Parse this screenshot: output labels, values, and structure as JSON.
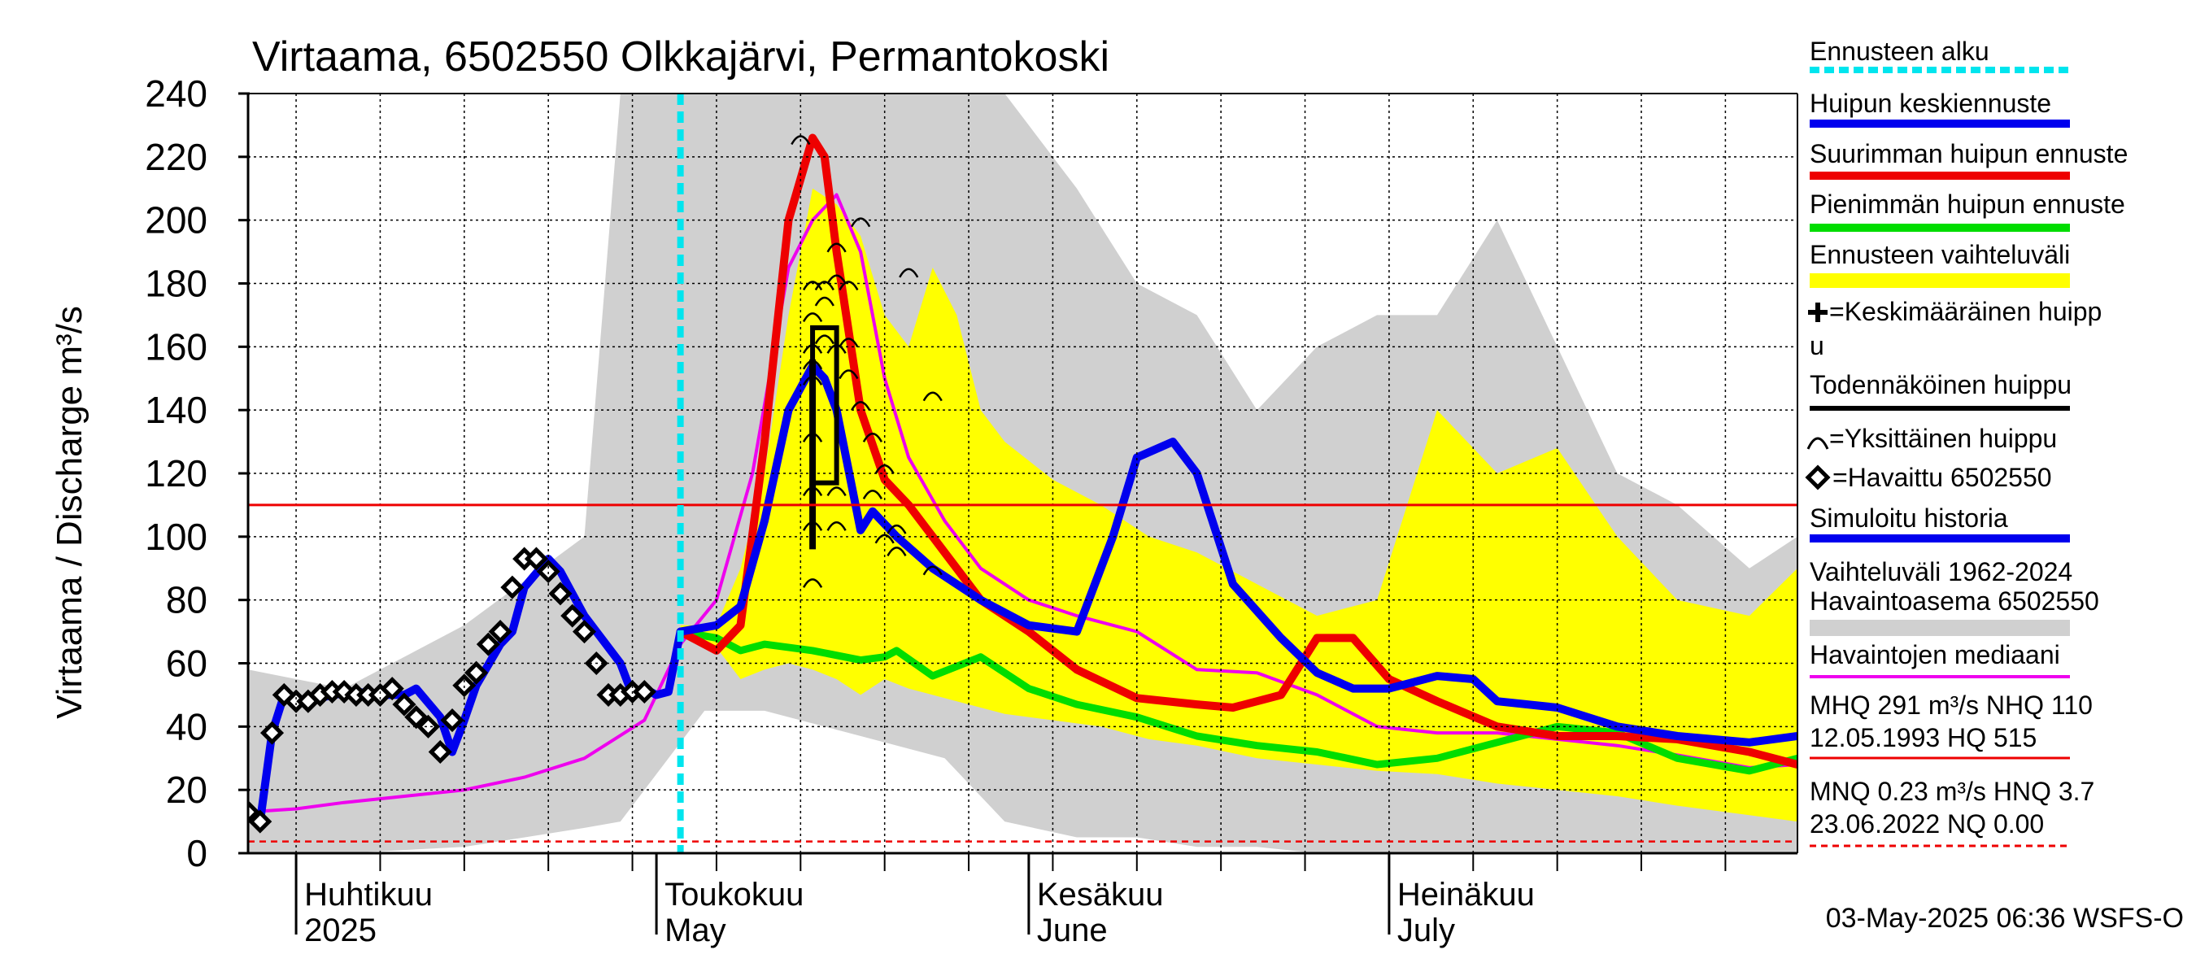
{
  "chart_data": {
    "type": "line",
    "title": "Virtaama, 6502550 Olkkajärvi, Permantokoski",
    "ylabel": "Virtaama / Discharge   m³/s",
    "ylim": [
      0,
      240
    ],
    "xlim": [
      "2025-03-28",
      "2025-08-04"
    ],
    "y_ticks": [
      0,
      20,
      40,
      60,
      80,
      100,
      120,
      140,
      160,
      180,
      200,
      220,
      240
    ],
    "grid": true,
    "legend_position": "right",
    "forecast_start": "2025-05-03",
    "month_labels": [
      {
        "date": "2025-04-01",
        "fi": "Huhtikuu",
        "en": "2025"
      },
      {
        "date": "2025-05-01",
        "fi": "Toukokuu",
        "en": "May"
      },
      {
        "date": "2025-06-01",
        "fi": "Kesäkuu",
        "en": "June"
      },
      {
        "date": "2025-07-01",
        "fi": "Heinäkuu",
        "en": "July"
      }
    ],
    "reference_lines": [
      {
        "name": "NHQ",
        "value": 110,
        "color": "#ee0000",
        "style": "solid"
      },
      {
        "name": "NQ",
        "value": 0.0,
        "color": "#ee0000",
        "style": "dashed"
      },
      {
        "name": "HNQ",
        "value": 3.7,
        "color": "#ee0000",
        "style": "dashed"
      }
    ],
    "series": [
      {
        "name": "Vaihteluväli 1962-2024 Havaintoasema 6502550",
        "kind": "band",
        "color": "#d0d0d0",
        "x": [
          "2025-03-28",
          "2025-04-05",
          "2025-04-15",
          "2025-04-25",
          "2025-04-28",
          "2025-05-05",
          "2025-05-10",
          "2025-05-15",
          "2025-05-20",
          "2025-05-25",
          "2025-05-30",
          "2025-06-05",
          "2025-06-10",
          "2025-06-15",
          "2025-06-20",
          "2025-06-25",
          "2025-06-30",
          "2025-07-05",
          "2025-07-10",
          "2025-07-15",
          "2025-07-20",
          "2025-07-25",
          "2025-07-31",
          "2025-08-04"
        ],
        "low": [
          0,
          0,
          2,
          8,
          10,
          45,
          45,
          40,
          35,
          30,
          10,
          5,
          5,
          2,
          2,
          0,
          0,
          0,
          0,
          0,
          0,
          0,
          0,
          0
        ],
        "high": [
          58,
          52,
          72,
          100,
          240,
          240,
          240,
          240,
          240,
          240,
          240,
          210,
          180,
          170,
          140,
          160,
          170,
          170,
          200,
          160,
          120,
          110,
          90,
          100
        ]
      },
      {
        "name": "Ennusteen vaihteluväli",
        "kind": "band",
        "color": "#ffff00",
        "x": [
          "2025-05-03",
          "2025-05-06",
          "2025-05-08",
          "2025-05-10",
          "2025-05-12",
          "2025-05-14",
          "2025-05-16",
          "2025-05-18",
          "2025-05-20",
          "2025-05-22",
          "2025-05-24",
          "2025-05-26",
          "2025-05-28",
          "2025-05-30",
          "2025-06-03",
          "2025-06-07",
          "2025-06-11",
          "2025-06-15",
          "2025-06-20",
          "2025-06-25",
          "2025-06-30",
          "2025-07-05",
          "2025-07-10",
          "2025-07-15",
          "2025-07-20",
          "2025-07-25",
          "2025-07-31",
          "2025-08-04"
        ],
        "low": [
          68,
          65,
          55,
          58,
          60,
          58,
          55,
          50,
          55,
          52,
          50,
          48,
          46,
          44,
          42,
          40,
          36,
          34,
          30,
          28,
          26,
          25,
          22,
          20,
          18,
          15,
          12,
          10
        ],
        "high": [
          72,
          72,
          90,
          120,
          170,
          210,
          205,
          195,
          170,
          160,
          185,
          170,
          140,
          130,
          118,
          110,
          100,
          95,
          85,
          75,
          80,
          140,
          120,
          128,
          100,
          80,
          75,
          90
        ]
      },
      {
        "name": "Havaintojen mediaani",
        "kind": "line",
        "color": "#ee00ee",
        "x": [
          "2025-03-28",
          "2025-04-01",
          "2025-04-05",
          "2025-04-10",
          "2025-04-15",
          "2025-04-20",
          "2025-04-25",
          "2025-04-30",
          "2025-05-03",
          "2025-05-06",
          "2025-05-09",
          "2025-05-12",
          "2025-05-14",
          "2025-05-16",
          "2025-05-18",
          "2025-05-20",
          "2025-05-22",
          "2025-05-25",
          "2025-05-28",
          "2025-06-01",
          "2025-06-05",
          "2025-06-10",
          "2025-06-15",
          "2025-06-20",
          "2025-06-25",
          "2025-06-30",
          "2025-07-05",
          "2025-07-10",
          "2025-07-15",
          "2025-07-20",
          "2025-07-25",
          "2025-07-31",
          "2025-08-04"
        ],
        "values": [
          13,
          14,
          16,
          18,
          20,
          24,
          30,
          42,
          66,
          80,
          120,
          185,
          200,
          208,
          190,
          150,
          125,
          105,
          90,
          80,
          75,
          70,
          58,
          57,
          50,
          40,
          38,
          38,
          36,
          34,
          31,
          27,
          28
        ]
      },
      {
        "name": "Suurimman huipun ennuste",
        "kind": "line",
        "color": "#ee0000",
        "x": [
          "2025-05-03",
          "2025-05-06",
          "2025-05-08",
          "2025-05-10",
          "2025-05-12",
          "2025-05-14",
          "2025-05-15",
          "2025-05-16",
          "2025-05-18",
          "2025-05-20",
          "2025-05-22",
          "2025-05-25",
          "2025-05-28",
          "2025-06-01",
          "2025-06-05",
          "2025-06-10",
          "2025-06-15",
          "2025-06-18",
          "2025-06-22",
          "2025-06-25",
          "2025-06-28",
          "2025-07-01",
          "2025-07-05",
          "2025-07-10",
          "2025-07-15",
          "2025-07-20",
          "2025-07-25",
          "2025-07-31",
          "2025-08-04"
        ],
        "values": [
          70,
          64,
          72,
          130,
          200,
          226,
          220,
          190,
          140,
          118,
          110,
          95,
          80,
          70,
          58,
          49,
          47,
          46,
          50,
          68,
          68,
          55,
          48,
          40,
          37,
          37,
          36,
          32,
          28
        ]
      },
      {
        "name": "Pienimmän huipun ennuste",
        "kind": "line",
        "color": "#00dd00",
        "x": [
          "2025-05-03",
          "2025-05-06",
          "2025-05-08",
          "2025-05-10",
          "2025-05-14",
          "2025-05-18",
          "2025-05-20",
          "2025-05-21",
          "2025-05-24",
          "2025-05-28",
          "2025-06-01",
          "2025-06-05",
          "2025-06-10",
          "2025-06-15",
          "2025-06-20",
          "2025-06-25",
          "2025-06-30",
          "2025-07-05",
          "2025-07-10",
          "2025-07-15",
          "2025-07-20",
          "2025-07-25",
          "2025-07-31",
          "2025-08-04"
        ],
        "values": [
          70,
          68,
          64,
          66,
          64,
          61,
          62,
          64,
          56,
          62,
          52,
          47,
          43,
          37,
          34,
          32,
          28,
          30,
          35,
          40,
          38,
          30,
          26,
          30
        ]
      },
      {
        "name": "Huipun keskiennuste",
        "kind": "line",
        "color": "#0000ee",
        "x": [
          "2025-05-03",
          "2025-05-06",
          "2025-05-08",
          "2025-05-10",
          "2025-05-12",
          "2025-05-14",
          "2025-05-15",
          "2025-05-16",
          "2025-05-18",
          "2025-05-19",
          "2025-05-21",
          "2025-05-24",
          "2025-05-28",
          "2025-06-01",
          "2025-06-05",
          "2025-06-08",
          "2025-06-10",
          "2025-06-13",
          "2025-06-15",
          "2025-06-18",
          "2025-06-22",
          "2025-06-25",
          "2025-06-28",
          "2025-07-01",
          "2025-07-05",
          "2025-07-08",
          "2025-07-10",
          "2025-07-15",
          "2025-07-20",
          "2025-07-25",
          "2025-07-31",
          "2025-08-04"
        ],
        "values": [
          70,
          72,
          78,
          105,
          140,
          154,
          150,
          140,
          102,
          108,
          100,
          90,
          80,
          72,
          70,
          100,
          125,
          130,
          120,
          85,
          68,
          57,
          52,
          52,
          56,
          55,
          48,
          46,
          40,
          37,
          35,
          37
        ]
      },
      {
        "name": "Simuloitu historia",
        "kind": "line",
        "color": "#0000ee",
        "x": [
          "2025-03-28",
          "2025-03-29",
          "2025-03-30",
          "2025-03-31",
          "2025-04-02",
          "2025-04-04",
          "2025-04-06",
          "2025-04-08",
          "2025-04-10",
          "2025-04-11",
          "2025-04-13",
          "2025-04-14",
          "2025-04-15",
          "2025-04-16",
          "2025-04-18",
          "2025-04-19",
          "2025-04-20",
          "2025-04-22",
          "2025-04-23",
          "2025-04-24",
          "2025-04-25",
          "2025-04-26",
          "2025-04-28",
          "2025-04-29",
          "2025-04-30",
          "2025-05-01",
          "2025-05-02",
          "2025-05-03"
        ],
        "values": [
          13,
          10,
          38,
          50,
          48,
          50,
          51,
          50,
          50,
          52,
          43,
          32,
          42,
          53,
          66,
          70,
          84,
          93,
          89,
          82,
          75,
          70,
          60,
          50,
          52,
          50,
          51,
          70
        ]
      },
      {
        "name": "Havaittu 6502550",
        "kind": "markers",
        "color": "#000000",
        "x": [
          "2025-03-28",
          "2025-03-29",
          "2025-03-30",
          "2025-03-31",
          "2025-04-01",
          "2025-04-02",
          "2025-04-03",
          "2025-04-04",
          "2025-04-05",
          "2025-04-06",
          "2025-04-07",
          "2025-04-08",
          "2025-04-09",
          "2025-04-10",
          "2025-04-11",
          "2025-04-12",
          "2025-04-13",
          "2025-04-14",
          "2025-04-15",
          "2025-04-16",
          "2025-04-17",
          "2025-04-18",
          "2025-04-19",
          "2025-04-20",
          "2025-04-21",
          "2025-04-22",
          "2025-04-23",
          "2025-04-24",
          "2025-04-25",
          "2025-04-26",
          "2025-04-27",
          "2025-04-28",
          "2025-04-29",
          "2025-04-30"
        ],
        "values": [
          13,
          10,
          38,
          50,
          48,
          48,
          50,
          51,
          51,
          50,
          50,
          50,
          52,
          47,
          43,
          40,
          32,
          42,
          53,
          57,
          66,
          70,
          84,
          93,
          93,
          89,
          82,
          75,
          70,
          60,
          50,
          50,
          51,
          51
        ]
      },
      {
        "name": "Yksittäinen huippu",
        "kind": "peaks",
        "color": "#000000",
        "x": [
          "2025-05-13",
          "2025-05-14",
          "2025-05-14",
          "2025-05-14",
          "2025-05-14",
          "2025-05-14",
          "2025-05-14",
          "2025-05-14",
          "2025-05-14",
          "2025-05-14",
          "2025-05-15",
          "2025-05-15",
          "2025-05-15",
          "2025-05-16",
          "2025-05-16",
          "2025-05-16",
          "2025-05-16",
          "2025-05-16",
          "2025-05-17",
          "2025-05-17",
          "2025-05-17",
          "2025-05-18",
          "2025-05-18",
          "2025-05-19",
          "2025-05-19",
          "2025-05-20",
          "2025-05-20",
          "2025-05-21",
          "2025-05-21",
          "2025-05-22",
          "2025-05-24",
          "2025-05-24"
        ],
        "values": [
          226,
          180,
          170,
          160,
          155,
          150,
          132,
          115,
          104,
          86,
          180,
          175,
          163,
          192,
          182,
          160,
          115,
          104,
          180,
          162,
          152,
          200,
          142,
          132,
          114,
          122,
          100,
          96,
          103,
          184,
          90,
          145
        ]
      }
    ],
    "peak_box": {
      "x_from": "2025-05-14",
      "x_to": "2025-05-16",
      "low": 117,
      "high": 166,
      "whisker_low": 96,
      "whisker_high": 156
    }
  },
  "labels": {
    "title": "Virtaama, 6502550 Olkkajärvi, Permantokoski",
    "ylabel": "Virtaama / Discharge   m³/s",
    "timestamp": "03-May-2025 06:36 WSFS-O"
  },
  "legend": {
    "forecast_start": "Ennusteen alku",
    "mean_peak": "Huipun keskiennuste",
    "max_peak": "Suurimman huipun ennuste",
    "min_peak": "Pienimmän huipun ennuste",
    "range": "Ennusteen vaihteluväli",
    "avg_peak_1": "=Keskimääräinen huipp",
    "avg_peak_2": "u",
    "probable_peak": "Todennäköinen huippu",
    "single_peak": "=Yksittäinen huippu",
    "observed": "=Havaittu 6502550",
    "simulated": "Simuloitu historia",
    "hist_range_1": "Vaihteluväli 1962-2024",
    "hist_range_2": " Havaintoasema 6502550",
    "median": "Havaintojen mediaani",
    "stats_1a": "MHQ  291 m³/s NHQ  110",
    "stats_1b": "12.05.1993 HQ  515",
    "stats_2a": "MNQ 0.23 m³/s HNQ  3.7",
    "stats_2b": "23.06.2022 NQ 0.00"
  },
  "colors": {
    "forecast_start": "#00e5ee",
    "mean_peak": "#0000ee",
    "max_peak": "#ee0000",
    "min_peak": "#00dd00",
    "range": "#ffff00",
    "hist_range": "#d0d0d0",
    "median": "#ee00ee",
    "black": "#000000",
    "ref": "#ee0000"
  }
}
